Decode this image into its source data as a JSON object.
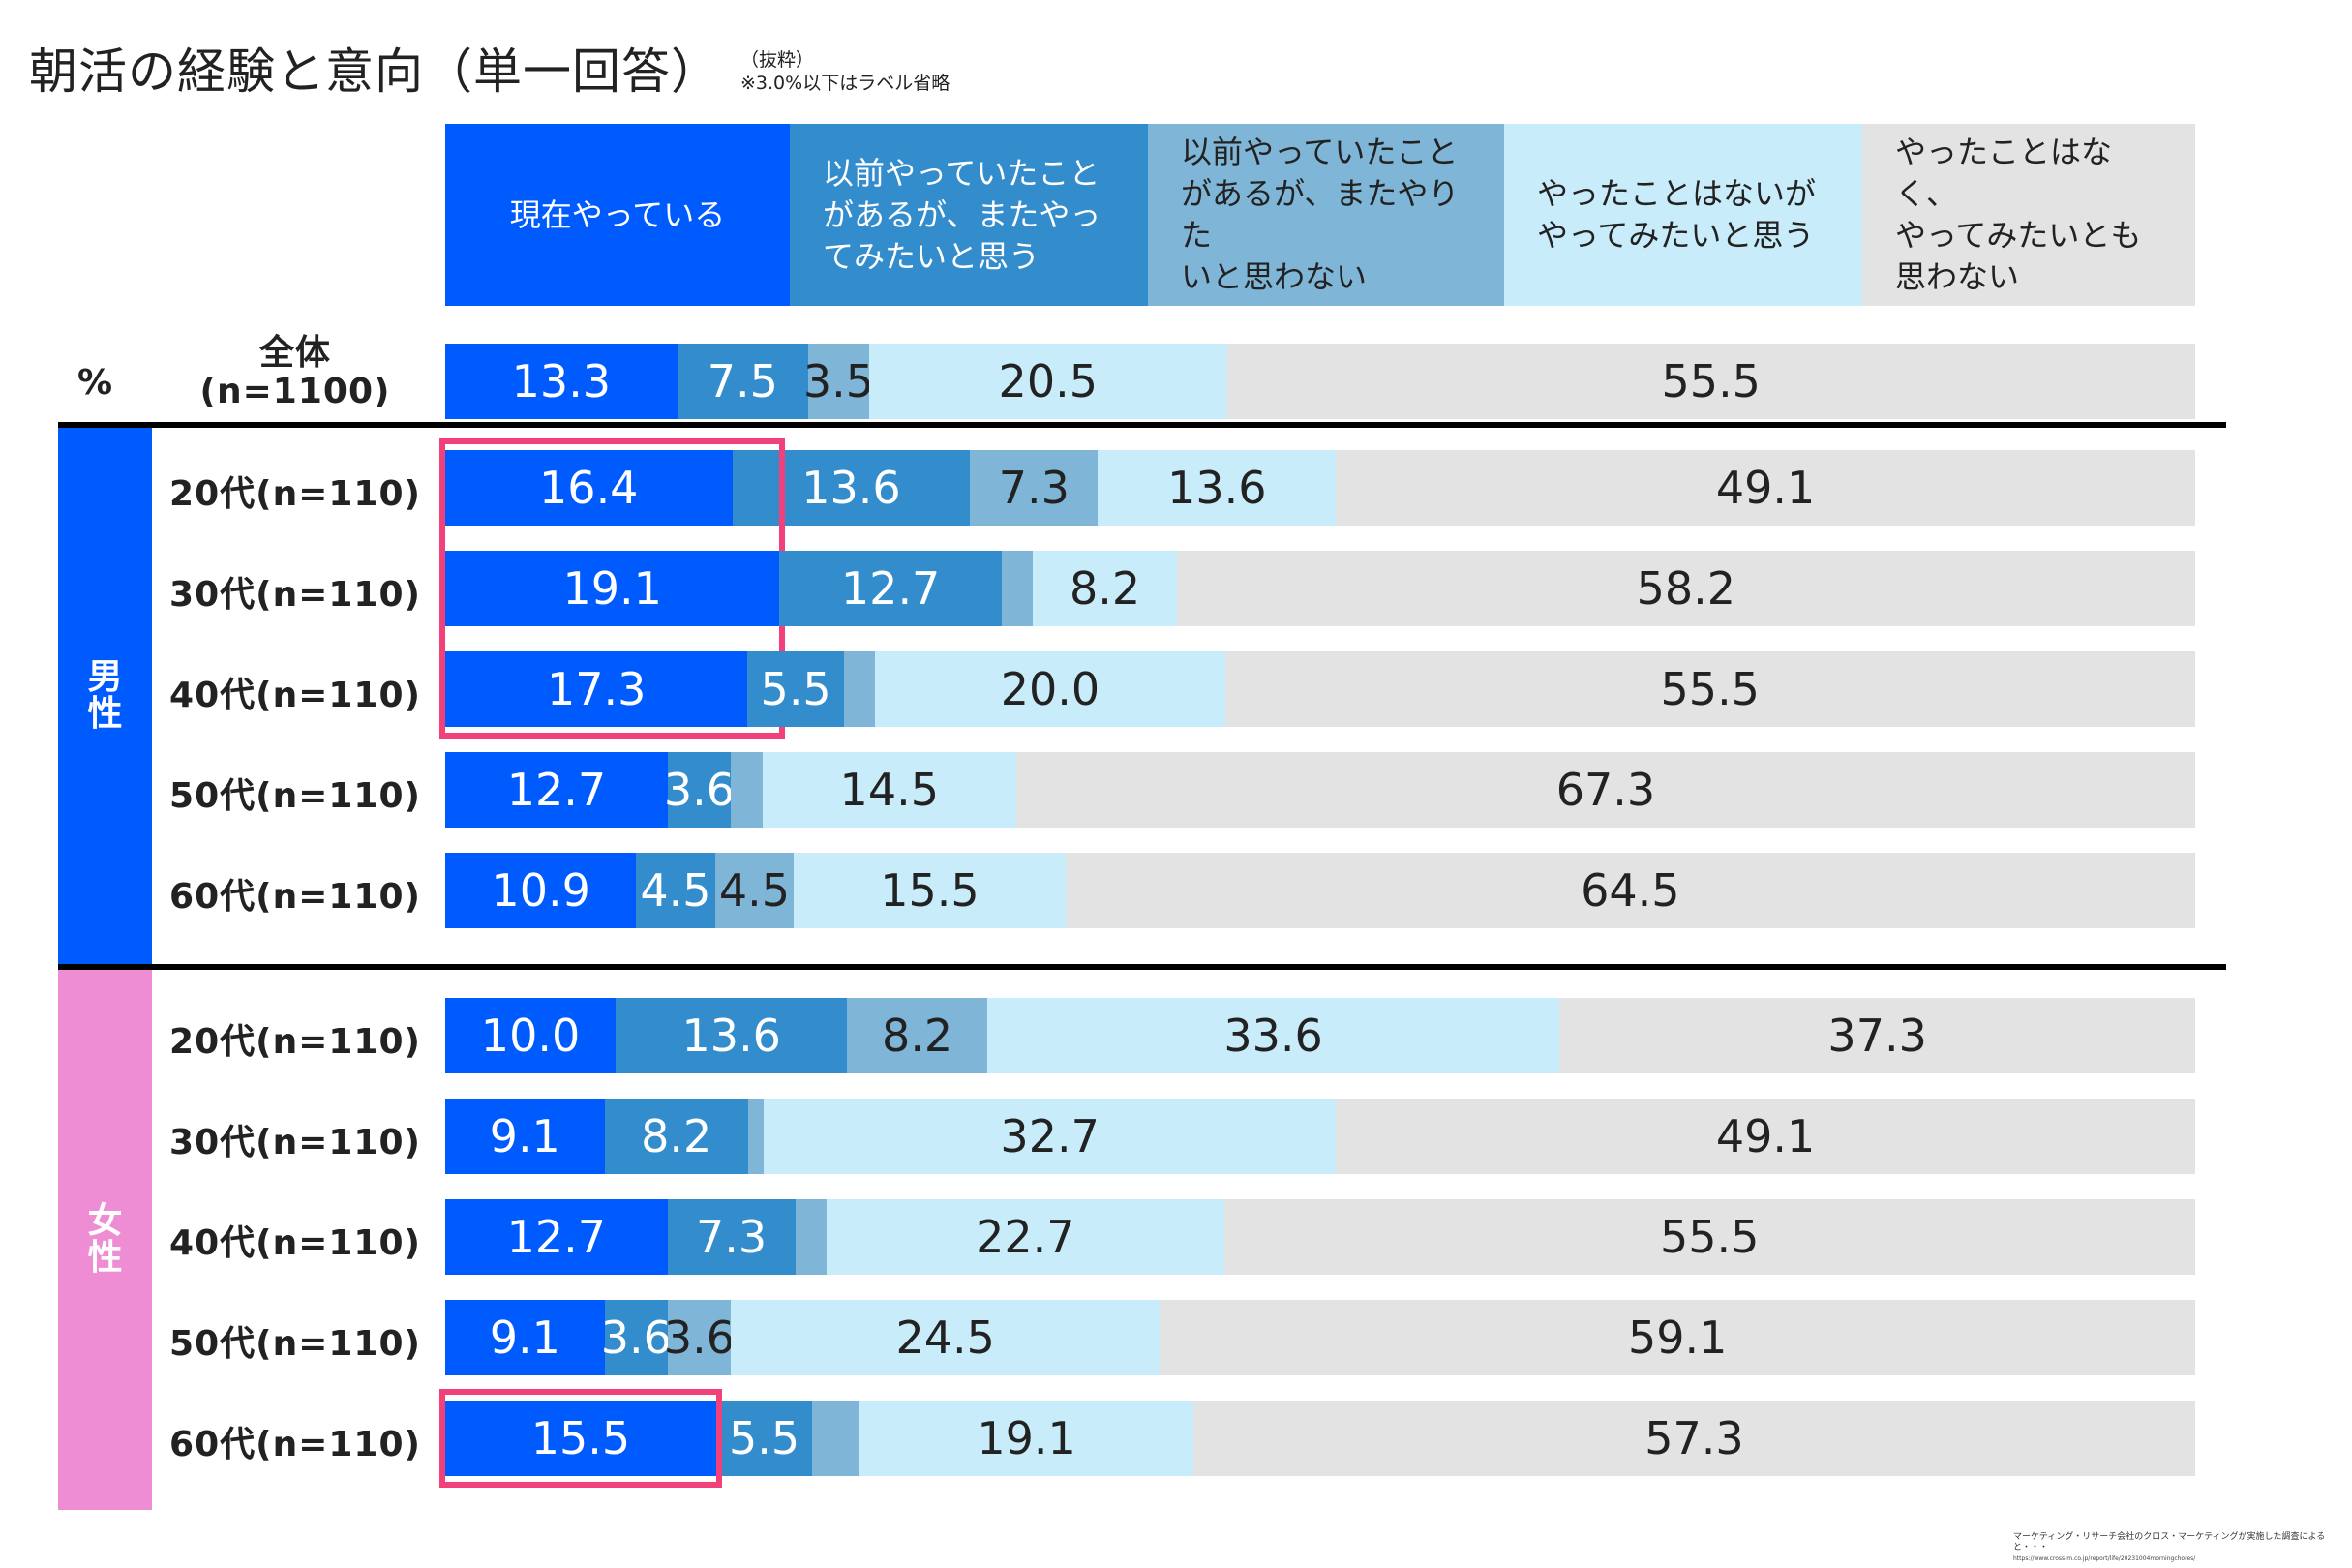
{
  "header": {
    "title": "朝活の経験と意向（単一回答）",
    "note_line1": "（抜粋）",
    "note_line2": "※3.0%以下はラベル省略"
  },
  "unit_label": "%",
  "total_label_line1": "全体",
  "total_label_line2": "(n=1100)",
  "groups": {
    "male": "男\n性",
    "female": "女\n性"
  },
  "colors": {
    "seg1": "#005bff",
    "seg2": "#338ccc",
    "seg3": "#7fb5d6",
    "seg4": "#c9ecfa",
    "seg5": "#e3e3e3",
    "male": "#005bff",
    "female": "#ee8dd3",
    "highlight": "#f2417a"
  },
  "footer": {
    "text": "マーケティング・リサーチ会社のクロス・マーケティングが実施した調査によると・・・",
    "url": "https://www.cross-m.co.jp/report/life/20231004morningchores/"
  },
  "chart_data": {
    "type": "bar",
    "orientation": "horizontal-stacked-100",
    "title": "朝活の経験と意向（単一回答）",
    "subtitle": "（抜粋） ※3.0%以下はラベル省略",
    "unit": "%",
    "label_threshold": 3.0,
    "series": [
      {
        "name": "現在やっている",
        "label_color": "#ffffff"
      },
      {
        "name": "以前やっていたことがあるが、またやってみたいと思う",
        "label_color": "#ffffff"
      },
      {
        "name": "以前やっていたことがあるが、またやりたいと思わない",
        "label_color": "#222222"
      },
      {
        "name": "やったことはないがやってみたいと思う",
        "label_color": "#222222"
      },
      {
        "name": "やったことはなく、やってみたいとも思わない",
        "label_color": "#222222"
      }
    ],
    "legend_lines": [
      "現在やっている",
      "以前やっていたこと\nがあるが、またやっ\nてみたいと思う",
      "以前やっていたこと\nがあるが、またやりた\nいと思わない",
      "やったことはないが\nやってみたいと思う",
      "やったことはなく、\nやってみたいとも\n思わない"
    ],
    "rows": [
      {
        "group": "total",
        "label": "全体(n=1100)",
        "values": [
          13.3,
          7.5,
          3.5,
          20.5,
          55.5
        ],
        "highlight": []
      },
      {
        "group": "male",
        "label": "20代(n=110)",
        "values": [
          16.4,
          13.6,
          7.3,
          13.6,
          49.1
        ],
        "highlight": [
          0
        ]
      },
      {
        "group": "male",
        "label": "30代(n=110)",
        "values": [
          19.1,
          12.7,
          1.8,
          8.2,
          58.2
        ],
        "highlight": [
          0
        ]
      },
      {
        "group": "male",
        "label": "40代(n=110)",
        "values": [
          17.3,
          5.5,
          1.8,
          20.0,
          55.5
        ],
        "highlight": [
          0
        ]
      },
      {
        "group": "male",
        "label": "50代(n=110)",
        "values": [
          12.7,
          3.6,
          1.8,
          14.5,
          67.3
        ],
        "highlight": []
      },
      {
        "group": "male",
        "label": "60代(n=110)",
        "values": [
          10.9,
          4.5,
          4.5,
          15.5,
          64.5
        ],
        "highlight": []
      },
      {
        "group": "female",
        "label": "20代(n=110)",
        "values": [
          10.0,
          13.6,
          8.2,
          33.6,
          37.3
        ],
        "highlight": []
      },
      {
        "group": "female",
        "label": "30代(n=110)",
        "values": [
          9.1,
          8.2,
          0.9,
          32.7,
          49.1
        ],
        "highlight": []
      },
      {
        "group": "female",
        "label": "40代(n=110)",
        "values": [
          12.7,
          7.3,
          1.8,
          22.7,
          55.5
        ],
        "highlight": []
      },
      {
        "group": "female",
        "label": "50代(n=110)",
        "values": [
          9.1,
          3.6,
          3.6,
          24.5,
          59.1
        ],
        "highlight": []
      },
      {
        "group": "female",
        "label": "60代(n=110)",
        "values": [
          15.5,
          5.5,
          2.7,
          19.1,
          57.3
        ],
        "highlight": [
          0
        ]
      }
    ],
    "xlim": [
      0,
      100
    ],
    "grid": false,
    "legend_position": "top"
  }
}
